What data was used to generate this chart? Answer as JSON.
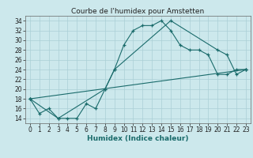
{
  "title": "Courbe de l'humidex pour Amstetten",
  "xlabel": "Humidex (Indice chaleur)",
  "background_color": "#cce8ec",
  "grid_color": "#aacfd6",
  "line_color": "#1a6b6b",
  "series": [
    {
      "x": [
        0,
        1,
        2,
        3,
        4,
        5,
        6,
        7,
        8,
        9,
        10,
        11,
        12,
        13,
        14,
        15,
        16,
        17,
        18,
        19,
        20,
        21,
        22,
        23
      ],
      "y": [
        18,
        15,
        16,
        14,
        14,
        14,
        17,
        16,
        20,
        24,
        29,
        32,
        33,
        33,
        34,
        32,
        29,
        28,
        28,
        27,
        23,
        23,
        24,
        24
      ]
    },
    {
      "x": [
        0,
        3,
        8,
        9,
        15,
        20,
        21,
        22,
        23
      ],
      "y": [
        18,
        14,
        20,
        24,
        34,
        28,
        27,
        23,
        24
      ]
    },
    {
      "x": [
        0,
        23
      ],
      "y": [
        18,
        24
      ]
    }
  ],
  "ylim": [
    13,
    35
  ],
  "xlim": [
    -0.5,
    23.5
  ],
  "yticks": [
    14,
    16,
    18,
    20,
    22,
    24,
    26,
    28,
    30,
    32,
    34
  ],
  "xticks": [
    0,
    1,
    2,
    3,
    4,
    5,
    6,
    7,
    8,
    9,
    10,
    11,
    12,
    13,
    14,
    15,
    16,
    17,
    18,
    19,
    20,
    21,
    22,
    23
  ],
  "title_fontsize": 6.5,
  "label_fontsize": 6.5,
  "tick_fontsize": 5.5
}
